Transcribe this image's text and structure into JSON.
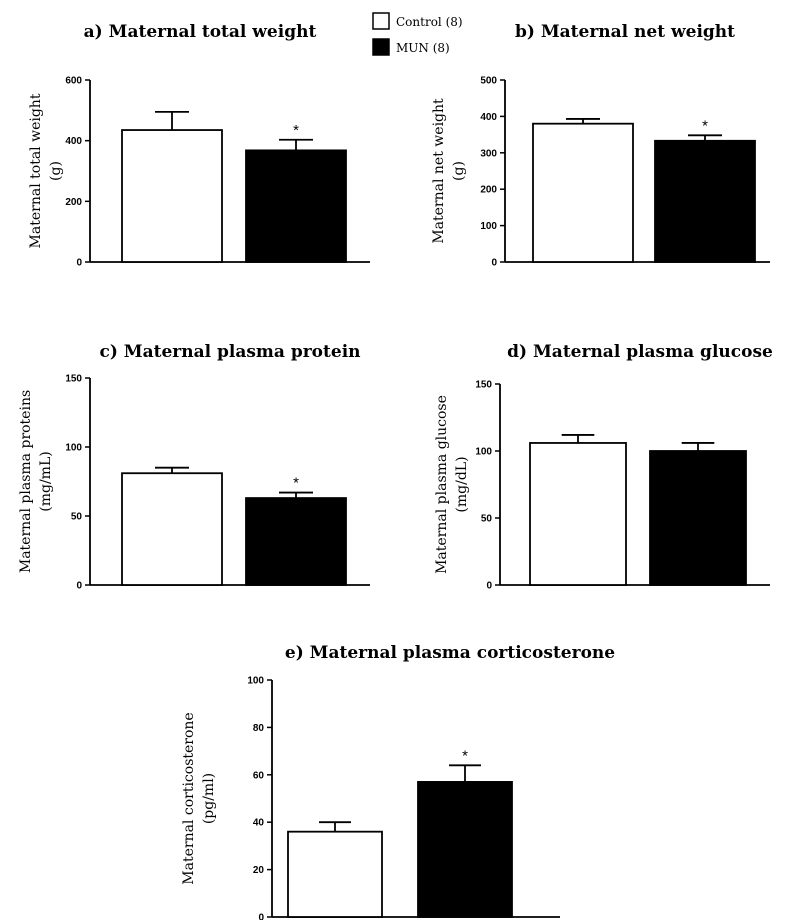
{
  "legend": [
    {
      "label": "Control (8)",
      "color": "#ffffff"
    },
    {
      "label": "MUN (8)",
      "color": "#000000"
    }
  ],
  "chart_data": [
    {
      "type": "bar",
      "title": "a) Maternal total weight",
      "ylabel": [
        "Maternal total weight",
        "(g)"
      ],
      "ylim": [
        0,
        600
      ],
      "yticks": [
        0,
        200,
        400,
        600
      ],
      "series": [
        {
          "name": "Control (8)",
          "color": "#ffffff",
          "value": 435,
          "error": 60,
          "significance": ""
        },
        {
          "name": "MUN (8)",
          "color": "#000000",
          "value": 368,
          "error": 35,
          "significance": "*"
        }
      ]
    },
    {
      "type": "bar",
      "title": "b) Maternal net weight",
      "ylabel": [
        "Maternal net weight",
        "(g)"
      ],
      "ylim": [
        0,
        500
      ],
      "yticks": [
        0,
        100,
        200,
        300,
        400,
        500
      ],
      "series": [
        {
          "name": "Control (8)",
          "color": "#ffffff",
          "value": 380,
          "error": 13,
          "significance": ""
        },
        {
          "name": "MUN (8)",
          "color": "#000000",
          "value": 333,
          "error": 15,
          "significance": "*"
        }
      ]
    },
    {
      "type": "bar",
      "title": "c) Maternal plasma protein",
      "ylabel": [
        "Maternal plasma proteins",
        "(mg/mL)"
      ],
      "ylim": [
        0,
        150
      ],
      "yticks": [
        0,
        50,
        100,
        150
      ],
      "series": [
        {
          "name": "Control (8)",
          "color": "#ffffff",
          "value": 81,
          "error": 4,
          "significance": ""
        },
        {
          "name": "MUN (8)",
          "color": "#000000",
          "value": 63,
          "error": 4,
          "significance": "*"
        }
      ]
    },
    {
      "type": "bar",
      "title": "d) Maternal plasma glucose",
      "ylabel": [
        "Maternal plasma glucose",
        "(mg/dL)"
      ],
      "ylim": [
        0,
        150
      ],
      "yticks": [
        0,
        50,
        100,
        150
      ],
      "series": [
        {
          "name": "Control (8)",
          "color": "#ffffff",
          "value": 106,
          "error": 6,
          "significance": ""
        },
        {
          "name": "MUN (8)",
          "color": "#000000",
          "value": 100,
          "error": 6,
          "significance": ""
        }
      ]
    },
    {
      "type": "bar",
      "title": "e) Maternal plasma corticosterone",
      "ylabel": [
        "Maternal corticosterone",
        "(pg/ml)"
      ],
      "ylim": [
        0,
        100
      ],
      "yticks": [
        0,
        20,
        40,
        60,
        80,
        100
      ],
      "series": [
        {
          "name": "Control (8)",
          "color": "#ffffff",
          "value": 36,
          "error": 4,
          "significance": ""
        },
        {
          "name": "MUN (8)",
          "color": "#000000",
          "value": 57,
          "error": 7,
          "significance": "*"
        }
      ]
    }
  ]
}
